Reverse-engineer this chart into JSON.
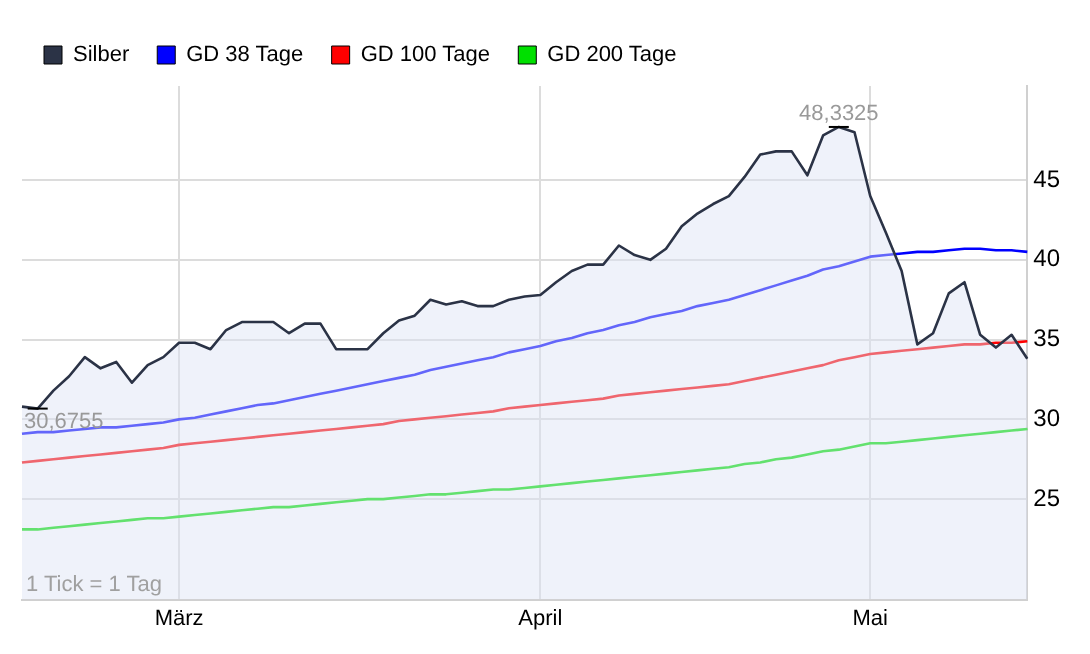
{
  "chart_data": {
    "type": "line",
    "categories": [
      null,
      null,
      null,
      null,
      null,
      null,
      null,
      null,
      null,
      null,
      "März",
      null,
      null,
      null,
      null,
      null,
      null,
      null,
      null,
      null,
      null,
      null,
      null,
      null,
      null,
      null,
      null,
      null,
      null,
      null,
      null,
      null,
      null,
      "April",
      null,
      null,
      null,
      null,
      null,
      null,
      null,
      null,
      null,
      null,
      null,
      null,
      null,
      null,
      null,
      null,
      null,
      null,
      null,
      null,
      "Mai",
      null,
      null,
      null,
      null,
      null,
      null,
      null,
      null,
      null,
      null
    ],
    "ylim": [
      18.7,
      50.9
    ],
    "yticks": [
      25,
      30,
      35,
      40,
      45
    ],
    "grid": true,
    "legend": "top left",
    "marker": "none",
    "line_style": "solid",
    "annotations": [
      "1 Tick = 1 Tag"
    ],
    "series": [
      {
        "name": "Silber",
        "type": "area",
        "color": "#2b3346",
        "value_labels": [
          null,
          "30,6755",
          null,
          null,
          null,
          null,
          null,
          null,
          null,
          null,
          null,
          null,
          null,
          null,
          null,
          null,
          null,
          null,
          null,
          null,
          null,
          null,
          null,
          null,
          null,
          null,
          null,
          null,
          null,
          null,
          null,
          null,
          null,
          null,
          null,
          null,
          null,
          null,
          null,
          null,
          null,
          null,
          null,
          null,
          null,
          null,
          null,
          null,
          null,
          null,
          null,
          null,
          "48,3325",
          null,
          null,
          null,
          null,
          null,
          null,
          null,
          null,
          null,
          null,
          null,
          null
        ],
        "values": [
          30.8,
          30.6755,
          31.8,
          32.7,
          33.9,
          33.2,
          33.6,
          32.3,
          33.4,
          33.9,
          34.8,
          34.8,
          34.4,
          35.6,
          36.1,
          36.1,
          36.1,
          35.4,
          36.0,
          36.0,
          34.4,
          34.4,
          34.4,
          35.4,
          36.2,
          36.5,
          37.5,
          37.2,
          37.4,
          37.1,
          37.1,
          37.5,
          37.7,
          37.8,
          38.6,
          39.3,
          39.7,
          39.7,
          40.9,
          40.3,
          40.0,
          40.7,
          42.1,
          42.9,
          43.5,
          44.0,
          45.2,
          46.6,
          46.8,
          46.8,
          45.3,
          47.8,
          48.3325,
          48.0,
          44.0,
          41.7,
          39.3,
          34.7,
          35.4,
          37.9,
          38.6,
          35.3,
          34.5,
          35.3,
          33.8
        ]
      },
      {
        "name": "GD 38 Tage",
        "color": "#0000ff",
        "values": [
          29.1,
          29.2,
          29.2,
          29.3,
          29.4,
          29.5,
          29.5,
          29.6,
          29.7,
          29.8,
          30.0,
          30.1,
          30.3,
          30.5,
          30.7,
          30.9,
          31.0,
          31.2,
          31.4,
          31.6,
          31.8,
          32.0,
          32.2,
          32.4,
          32.6,
          32.8,
          33.1,
          33.3,
          33.5,
          33.7,
          33.9,
          34.2,
          34.4,
          34.6,
          34.9,
          35.1,
          35.4,
          35.6,
          35.9,
          36.1,
          36.4,
          36.6,
          36.8,
          37.1,
          37.3,
          37.5,
          37.8,
          38.1,
          38.4,
          38.7,
          39.0,
          39.4,
          39.6,
          39.9,
          40.2,
          40.3,
          40.4,
          40.5,
          40.5,
          40.6,
          40.7,
          40.7,
          40.6,
          40.6,
          40.5
        ]
      },
      {
        "name": "GD 100 Tage",
        "color": "#ff0000",
        "values": [
          27.3,
          27.4,
          27.5,
          27.6,
          27.7,
          27.8,
          27.9,
          28.0,
          28.1,
          28.2,
          28.4,
          28.5,
          28.6,
          28.7,
          28.8,
          28.9,
          29.0,
          29.1,
          29.2,
          29.3,
          29.4,
          29.5,
          29.6,
          29.7,
          29.9,
          30.0,
          30.1,
          30.2,
          30.3,
          30.4,
          30.5,
          30.7,
          30.8,
          30.9,
          31.0,
          31.1,
          31.2,
          31.3,
          31.5,
          31.6,
          31.7,
          31.8,
          31.9,
          32.0,
          32.1,
          32.2,
          32.4,
          32.6,
          32.8,
          33.0,
          33.2,
          33.4,
          33.7,
          33.9,
          34.1,
          34.2,
          34.3,
          34.4,
          34.5,
          34.6,
          34.7,
          34.7,
          34.8,
          34.8,
          34.9
        ]
      },
      {
        "name": "GD 200 Tage",
        "color": "#00e000",
        "values": [
          23.1,
          23.1,
          23.2,
          23.3,
          23.4,
          23.5,
          23.6,
          23.7,
          23.8,
          23.8,
          23.9,
          24.0,
          24.1,
          24.2,
          24.3,
          24.4,
          24.5,
          24.5,
          24.6,
          24.7,
          24.8,
          24.9,
          25.0,
          25.0,
          25.1,
          25.2,
          25.3,
          25.3,
          25.4,
          25.5,
          25.6,
          25.6,
          25.7,
          25.8,
          25.9,
          26.0,
          26.1,
          26.2,
          26.3,
          26.4,
          26.5,
          26.6,
          26.7,
          26.8,
          26.9,
          27.0,
          27.2,
          27.3,
          27.5,
          27.6,
          27.8,
          28.0,
          28.1,
          28.3,
          28.5,
          28.5,
          28.6,
          28.7,
          28.8,
          28.9,
          29.0,
          29.1,
          29.2,
          29.3,
          29.4
        ]
      }
    ]
  }
}
